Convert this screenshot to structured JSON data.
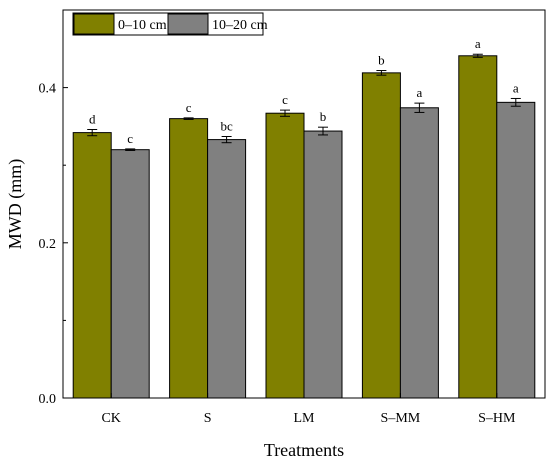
{
  "chart_data": {
    "type": "bar",
    "title": "",
    "xlabel": "Treatments",
    "ylabel": "MWD (mm)",
    "categories": [
      "CK",
      "S",
      "LM",
      "S–MM",
      "S–HM"
    ],
    "ylim": [
      0.0,
      0.5
    ],
    "yticks": [
      0.0,
      0.2,
      0.4
    ],
    "ytick_labels": [
      "0.0",
      "0.2",
      "0.4"
    ],
    "grid": false,
    "legend_position": "top-left",
    "series": [
      {
        "name": "0–10 cm",
        "color": "#808000",
        "values": [
          0.342,
          0.36,
          0.367,
          0.419,
          0.441
        ],
        "errors": [
          0.004,
          0.001,
          0.004,
          0.003,
          0.002
        ],
        "letters": [
          "d",
          "c",
          "c",
          "b",
          "a"
        ]
      },
      {
        "name": "10–20 cm",
        "color": "#808080",
        "values": [
          0.32,
          0.333,
          0.344,
          0.374,
          0.381
        ],
        "errors": [
          0.001,
          0.004,
          0.005,
          0.006,
          0.005
        ],
        "letters": [
          "c",
          "bc",
          "b",
          "a",
          "a"
        ]
      }
    ]
  }
}
